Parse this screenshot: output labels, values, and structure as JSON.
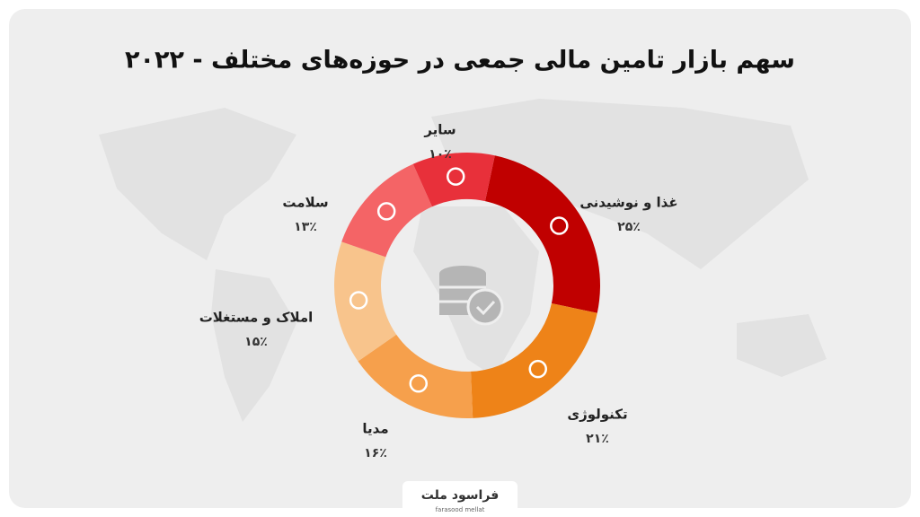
{
  "chart_data": {
    "type": "donut",
    "title": "سهم بازار تامین مالی جمعی در حوزه‌های مختلف - ۲۰۲۲",
    "categories": [
      "غذا و نوشیدنی",
      "تکنولوژی",
      "مدیا",
      "املاک و مستغلات",
      "سلامت",
      "سایر"
    ],
    "values": [
      25,
      21,
      16,
      15,
      13,
      10
    ],
    "value_labels": [
      "۲۵٪",
      "۲۱٪",
      "۱۶٪",
      "۱۵٪",
      "۱۳٪",
      "۱۰٪"
    ],
    "colors": [
      "#c00000",
      "#ee8318",
      "#f6a04c",
      "#f8c48c",
      "#f46466",
      "#e8303a"
    ],
    "brand": {
      "name": "فراسود ملت",
      "latin": "farasood mellat"
    }
  }
}
